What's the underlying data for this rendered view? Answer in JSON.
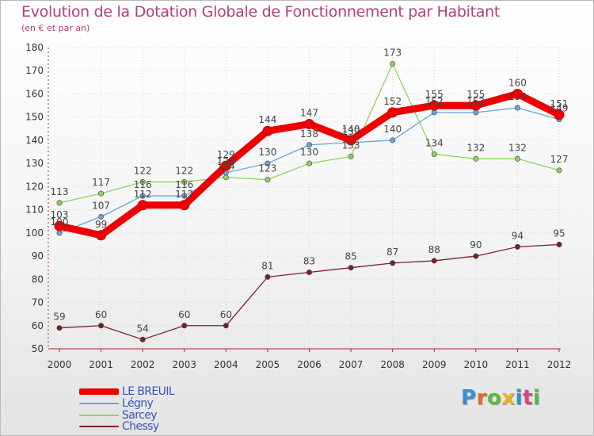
{
  "header": {
    "title": "Evolution de la Dotation Globale de Fonctionnement par Habitant",
    "subtitle": "(en € et par an)"
  },
  "brand": {
    "letters": [
      "P",
      "r",
      "o",
      "x",
      "i",
      "t",
      "i"
    ],
    "colors": [
      "#3a8fd3",
      "#e06a2a",
      "#5fb83c",
      "#e8b31d",
      "#3a8fd3",
      "#d9467a",
      "#5fb83c"
    ]
  },
  "chart_data": {
    "type": "line",
    "title": "Evolution de la Dotation Globale de Fonctionnement par Habitant",
    "subtitle": "(en € et par an)",
    "xlabel": "",
    "ylabel": "",
    "categories": [
      "2000",
      "2001",
      "2002",
      "2003",
      "2004",
      "2005",
      "2006",
      "2007",
      "2008",
      "2009",
      "2010",
      "2011",
      "2012"
    ],
    "ylim": [
      50,
      180
    ],
    "yticks": [
      50,
      60,
      70,
      80,
      90,
      100,
      110,
      120,
      130,
      140,
      150,
      160,
      170,
      180
    ],
    "grid": true,
    "legend_position": "bottom-left",
    "series": [
      {
        "name": "Chessy",
        "color": "#7a1f26",
        "values": [
          59,
          60,
          54,
          60,
          60,
          81,
          83,
          85,
          87,
          88,
          90,
          94,
          95
        ],
        "labels": [
          "59",
          "60",
          "54",
          "60",
          "60",
          "81",
          "83",
          "85",
          "87",
          "88",
          "90",
          "94",
          "95"
        ]
      },
      {
        "name": "Sarcey",
        "color": "#8fd45a",
        "values": [
          113,
          117,
          122,
          122,
          124,
          123,
          130,
          133,
          173,
          134,
          132,
          132,
          127
        ],
        "labels": [
          "113",
          "117",
          "122",
          "122",
          "124",
          "123",
          "130",
          "133",
          "173",
          "134",
          "132",
          "132",
          "127"
        ]
      },
      {
        "name": "Légny",
        "color": "#6aa6d8",
        "values": [
          100,
          107,
          116,
          116,
          126,
          130,
          138,
          139,
          140,
          152,
          152,
          154,
          149
        ],
        "labels": [
          "100",
          "107",
          "116",
          "116",
          "126",
          "130",
          "138",
          "139",
          "140",
          "152",
          "152",
          "154",
          "149"
        ]
      },
      {
        "name": "LE BREUIL",
        "color": "#ee0000",
        "values": [
          103,
          99,
          112,
          112,
          129,
          144,
          147,
          140,
          152,
          155,
          155,
          160,
          151
        ],
        "labels": [
          "103",
          "99",
          "112",
          "112",
          "129",
          "144",
          "147",
          "140",
          "152",
          "155",
          "155",
          "160",
          "151"
        ]
      }
    ],
    "legend": [
      {
        "name": "LE BREUIL",
        "color": "#ee0000"
      },
      {
        "name": "Légny",
        "color": "#6aa6d8"
      },
      {
        "name": "Sarcey",
        "color": "#8fd45a"
      },
      {
        "name": "Chessy",
        "color": "#7a1f26"
      }
    ]
  }
}
